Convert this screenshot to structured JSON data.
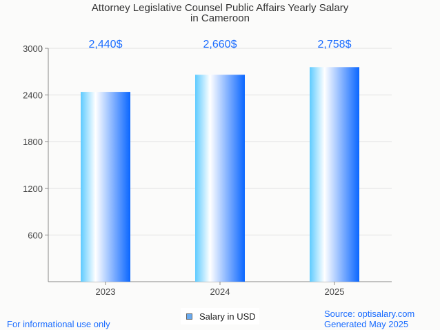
{
  "chart_data": {
    "type": "bar",
    "title_line1": "Attorney Legislative Counsel Public Affairs Yearly Salary",
    "title_line2": "in Cameroon",
    "categories": [
      "2023",
      "2024",
      "2025"
    ],
    "values": [
      2440,
      2660,
      2758
    ],
    "value_labels": [
      "2,440$",
      "2,660$",
      "2,758$"
    ],
    "yticks": [
      600,
      1200,
      1800,
      2400,
      3000
    ],
    "ylim": [
      0,
      3000
    ],
    "xlabel": "",
    "ylabel": "",
    "grid": true,
    "legend": {
      "label": "Salary in USD",
      "position": "bottom-center"
    },
    "colors": {
      "bar_left": "#5ecbff",
      "bar_mid": "#ffffff",
      "bar_right": "#0a66ff",
      "value_label": "#1a6cff"
    }
  },
  "footer": {
    "left": "For informational use only",
    "source": "Source: optisalary.com",
    "generated": "Generated May 2025"
  }
}
